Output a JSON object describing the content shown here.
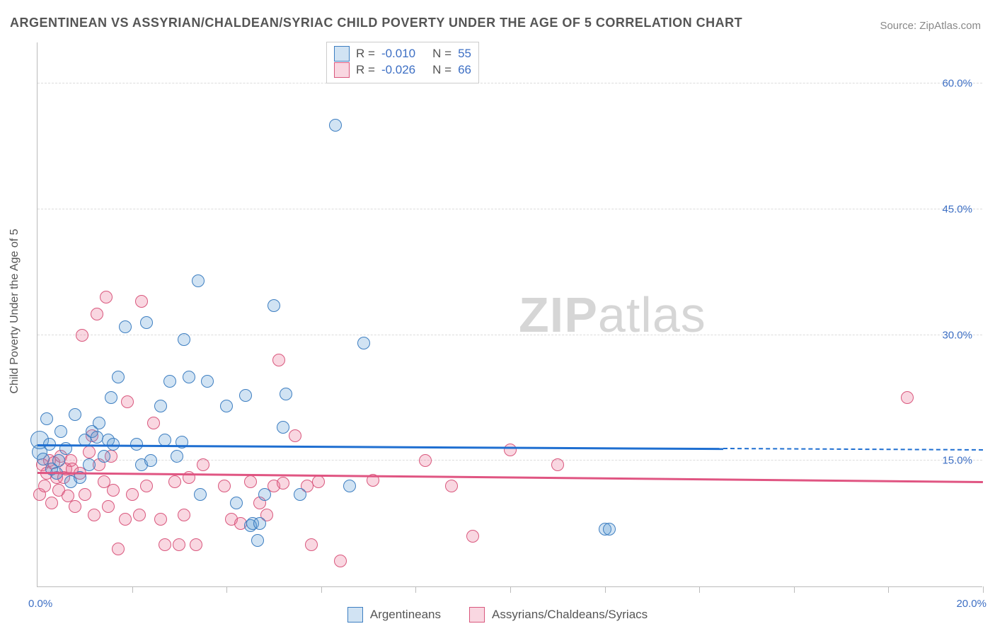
{
  "title": "ARGENTINEAN VS ASSYRIAN/CHALDEAN/SYRIAC CHILD POVERTY UNDER THE AGE OF 5 CORRELATION CHART",
  "source": "Source: ZipAtlas.com",
  "yaxis_label": "Child Poverty Under the Age of 5",
  "watermark_bold": "ZIP",
  "watermark_light": "atlas",
  "chart": {
    "type": "scatter",
    "xlim": [
      0,
      20
    ],
    "ylim": [
      0,
      65
    ],
    "y_ticks": [
      15,
      30,
      45,
      60
    ],
    "y_tick_labels": [
      "15.0%",
      "30.0%",
      "45.0%",
      "60.0%"
    ],
    "x_tick_positions": [
      0,
      2,
      4,
      6,
      8,
      10,
      12,
      14,
      16,
      18,
      20
    ],
    "x_tick_labels": {
      "0": "0.0%",
      "20": "20.0%"
    },
    "background_color": "#ffffff",
    "grid_color": "#dcdcdc",
    "axis_color": "#bbbbbb",
    "tick_label_color": "#3d6fc4",
    "title_color": "#555555",
    "title_fontsize": 18,
    "label_fontsize": 16,
    "marker_radius": 9,
    "marker_stroke_width": 1.4,
    "marker_fill_opacity": 0.28
  },
  "series": {
    "a": {
      "label": "Argentineans",
      "color_fill": "#5a9bd5",
      "color_stroke": "#3d7ec1",
      "r_label": "R =",
      "r_value": "-0.010",
      "n_label": "N =",
      "n_value": "55",
      "trend": {
        "color": "#1f6fd1",
        "y_start": 16.8,
        "y_end": 16.2,
        "x_solid_end": 14.5
      },
      "points": [
        {
          "x": 0.05,
          "y": 17.5,
          "r": 13
        },
        {
          "x": 0.05,
          "y": 16.0,
          "r": 11
        },
        {
          "x": 0.12,
          "y": 15.2
        },
        {
          "x": 0.2,
          "y": 20.0
        },
        {
          "x": 0.25,
          "y": 17.0
        },
        {
          "x": 0.3,
          "y": 14.0
        },
        {
          "x": 0.4,
          "y": 13.5
        },
        {
          "x": 0.45,
          "y": 15.0
        },
        {
          "x": 0.5,
          "y": 18.5
        },
        {
          "x": 0.6,
          "y": 16.5
        },
        {
          "x": 0.7,
          "y": 12.5
        },
        {
          "x": 0.8,
          "y": 20.5
        },
        {
          "x": 0.9,
          "y": 13.0
        },
        {
          "x": 1.0,
          "y": 17.5
        },
        {
          "x": 1.1,
          "y": 14.5
        },
        {
          "x": 1.15,
          "y": 18.5
        },
        {
          "x": 1.25,
          "y": 17.8
        },
        {
          "x": 1.3,
          "y": 19.5
        },
        {
          "x": 1.4,
          "y": 15.5
        },
        {
          "x": 1.5,
          "y": 17.5
        },
        {
          "x": 1.55,
          "y": 22.5
        },
        {
          "x": 1.6,
          "y": 17.0
        },
        {
          "x": 1.7,
          "y": 25.0
        },
        {
          "x": 1.85,
          "y": 31.0
        },
        {
          "x": 2.1,
          "y": 17.0
        },
        {
          "x": 2.2,
          "y": 14.5
        },
        {
          "x": 2.3,
          "y": 31.5
        },
        {
          "x": 2.4,
          "y": 15.0
        },
        {
          "x": 2.6,
          "y": 21.5
        },
        {
          "x": 2.7,
          "y": 17.5
        },
        {
          "x": 2.8,
          "y": 24.5
        },
        {
          "x": 2.95,
          "y": 15.5
        },
        {
          "x": 3.05,
          "y": 17.2
        },
        {
          "x": 3.1,
          "y": 29.5
        },
        {
          "x": 3.2,
          "y": 25.0
        },
        {
          "x": 3.4,
          "y": 36.5
        },
        {
          "x": 3.45,
          "y": 11.0
        },
        {
          "x": 3.6,
          "y": 24.5
        },
        {
          "x": 4.0,
          "y": 21.5
        },
        {
          "x": 4.2,
          "y": 10.0
        },
        {
          "x": 4.4,
          "y": 22.8
        },
        {
          "x": 4.5,
          "y": 7.3
        },
        {
          "x": 4.55,
          "y": 7.5
        },
        {
          "x": 4.65,
          "y": 5.5
        },
        {
          "x": 4.7,
          "y": 7.5
        },
        {
          "x": 4.8,
          "y": 11.0
        },
        {
          "x": 5.0,
          "y": 33.5
        },
        {
          "x": 5.2,
          "y": 19.0
        },
        {
          "x": 5.25,
          "y": 23.0
        },
        {
          "x": 5.55,
          "y": 11.0
        },
        {
          "x": 6.3,
          "y": 55.0
        },
        {
          "x": 6.6,
          "y": 12.0
        },
        {
          "x": 6.9,
          "y": 29.0
        },
        {
          "x": 12.0,
          "y": 6.8
        },
        {
          "x": 12.1,
          "y": 6.8
        }
      ]
    },
    "b": {
      "label": "Assyrians/Chaldeans/Syriacs",
      "color_fill": "#e86f92",
      "color_stroke": "#d9577d",
      "r_label": "R =",
      "r_value": "-0.026",
      "n_label": "N =",
      "n_value": "66",
      "trend": {
        "color": "#e05582",
        "y_start": 13.5,
        "y_end": 12.4
      },
      "points": [
        {
          "x": 0.05,
          "y": 11.0
        },
        {
          "x": 0.1,
          "y": 14.5
        },
        {
          "x": 0.15,
          "y": 12.0
        },
        {
          "x": 0.2,
          "y": 13.5
        },
        {
          "x": 0.25,
          "y": 15.0
        },
        {
          "x": 0.3,
          "y": 10.0
        },
        {
          "x": 0.35,
          "y": 14.8
        },
        {
          "x": 0.4,
          "y": 13.0
        },
        {
          "x": 0.45,
          "y": 11.5
        },
        {
          "x": 0.5,
          "y": 15.5
        },
        {
          "x": 0.55,
          "y": 13.0
        },
        {
          "x": 0.6,
          "y": 14.0
        },
        {
          "x": 0.65,
          "y": 10.8
        },
        {
          "x": 0.7,
          "y": 15.0
        },
        {
          "x": 0.73,
          "y": 14.0
        },
        {
          "x": 0.8,
          "y": 9.5
        },
        {
          "x": 0.9,
          "y": 13.5
        },
        {
          "x": 0.95,
          "y": 30.0
        },
        {
          "x": 1.0,
          "y": 11.0
        },
        {
          "x": 1.1,
          "y": 16.0
        },
        {
          "x": 1.15,
          "y": 18.0
        },
        {
          "x": 1.2,
          "y": 8.5
        },
        {
          "x": 1.25,
          "y": 32.5
        },
        {
          "x": 1.3,
          "y": 14.5
        },
        {
          "x": 1.4,
          "y": 12.5
        },
        {
          "x": 1.45,
          "y": 34.5
        },
        {
          "x": 1.5,
          "y": 9.5
        },
        {
          "x": 1.55,
          "y": 15.5
        },
        {
          "x": 1.6,
          "y": 11.5
        },
        {
          "x": 1.7,
          "y": 4.5
        },
        {
          "x": 1.85,
          "y": 8.0
        },
        {
          "x": 1.9,
          "y": 22.0
        },
        {
          "x": 2.0,
          "y": 11.0
        },
        {
          "x": 2.15,
          "y": 8.5
        },
        {
          "x": 2.2,
          "y": 34.0
        },
        {
          "x": 2.3,
          "y": 12.0
        },
        {
          "x": 2.45,
          "y": 19.5
        },
        {
          "x": 2.6,
          "y": 8.0
        },
        {
          "x": 2.7,
          "y": 5.0
        },
        {
          "x": 2.9,
          "y": 12.5
        },
        {
          "x": 3.0,
          "y": 5.0
        },
        {
          "x": 3.1,
          "y": 8.5
        },
        {
          "x": 3.2,
          "y": 13.0
        },
        {
          "x": 3.35,
          "y": 5.0
        },
        {
          "x": 3.5,
          "y": 14.5
        },
        {
          "x": 3.95,
          "y": 12.0
        },
        {
          "x": 4.1,
          "y": 8.0
        },
        {
          "x": 4.3,
          "y": 7.5
        },
        {
          "x": 4.5,
          "y": 12.5
        },
        {
          "x": 4.7,
          "y": 10.0
        },
        {
          "x": 4.85,
          "y": 8.5
        },
        {
          "x": 5.0,
          "y": 12.0
        },
        {
          "x": 5.1,
          "y": 27.0
        },
        {
          "x": 5.2,
          "y": 12.3
        },
        {
          "x": 5.45,
          "y": 18.0
        },
        {
          "x": 5.7,
          "y": 12.0
        },
        {
          "x": 5.8,
          "y": 5.0
        },
        {
          "x": 5.95,
          "y": 12.5
        },
        {
          "x": 6.4,
          "y": 3.0
        },
        {
          "x": 7.1,
          "y": 12.7
        },
        {
          "x": 8.2,
          "y": 15.0
        },
        {
          "x": 8.75,
          "y": 12.0
        },
        {
          "x": 9.2,
          "y": 6.0
        },
        {
          "x": 10.0,
          "y": 16.3
        },
        {
          "x": 11.0,
          "y": 14.5
        },
        {
          "x": 18.4,
          "y": 22.5
        }
      ]
    }
  }
}
